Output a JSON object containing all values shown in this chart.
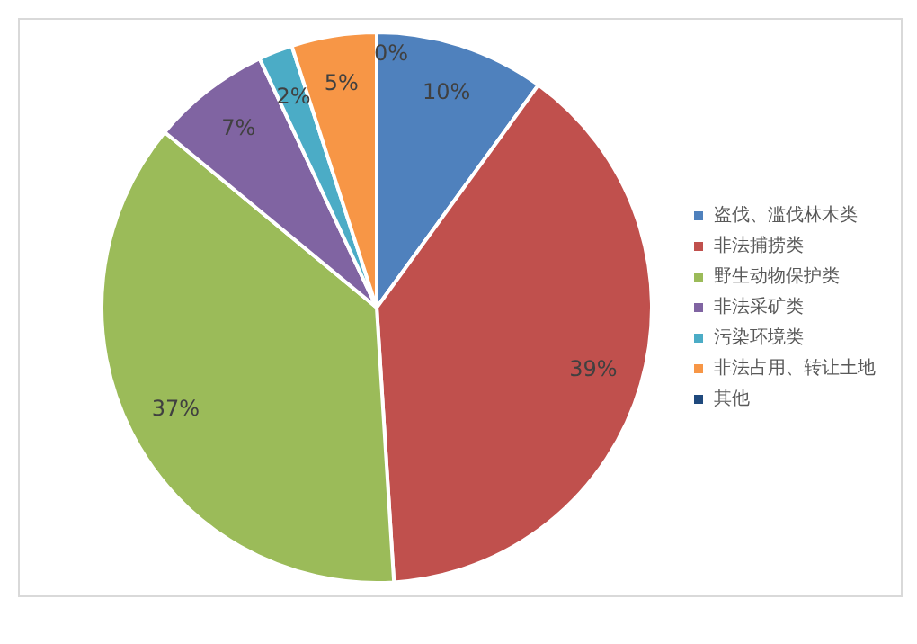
{
  "chart_data": {
    "type": "pie",
    "categories": [
      "盗伐、滥伐林木类",
      "非法捕捞类",
      "野生动物保护类",
      "非法采矿类",
      "污染环境类",
      "非法占用、转让土地",
      "其他"
    ],
    "values": [
      10,
      39,
      37,
      7,
      2,
      5,
      0
    ],
    "colors": [
      "#4f81bd",
      "#c0504d",
      "#9bbb59",
      "#8064a2",
      "#4bacc6",
      "#f79646",
      "#1f497d"
    ],
    "value_labels": [
      "10%",
      "39%",
      "37%",
      "7%",
      "2%",
      "5%",
      "0%"
    ],
    "legend": "right"
  }
}
